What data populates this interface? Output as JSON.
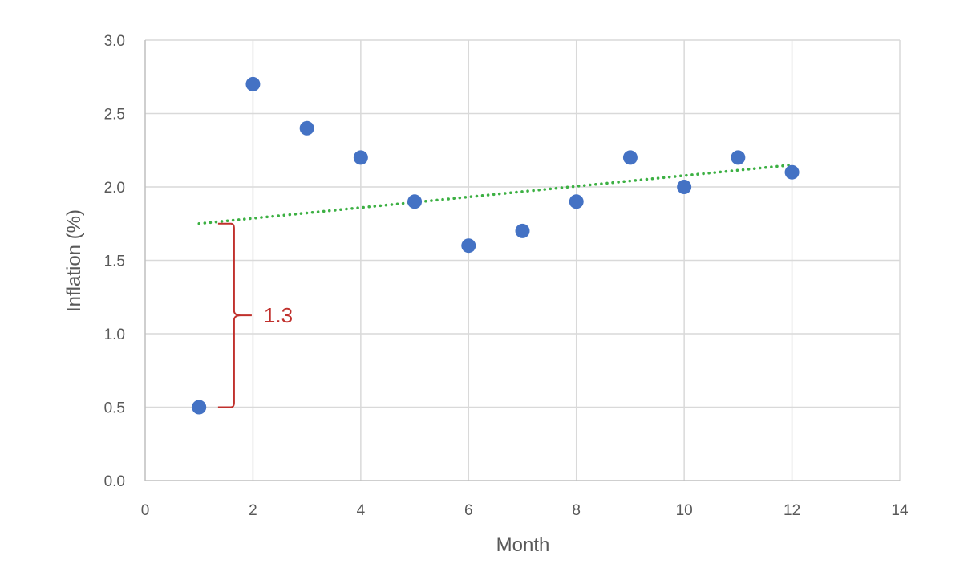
{
  "chart_data": {
    "type": "scatter",
    "title": "",
    "xlabel": "Month",
    "ylabel": "Inflation (%)",
    "xlim": [
      0,
      14
    ],
    "ylim": [
      0.0,
      3.0
    ],
    "x_ticks": [
      "0",
      "2",
      "4",
      "6",
      "8",
      "10",
      "12",
      "14"
    ],
    "y_ticks": [
      "0.0",
      "0.5",
      "1.0",
      "1.5",
      "2.0",
      "2.5",
      "3.0"
    ],
    "grid": true,
    "legend": "none",
    "series": [
      {
        "x": [
          1,
          2,
          3,
          4,
          5,
          6,
          7,
          8,
          9,
          10,
          11,
          12
        ],
        "y": [
          0.5,
          2.7,
          2.4,
          2.2,
          1.9,
          1.6,
          1.7,
          1.9,
          2.2,
          2.0,
          2.2,
          2.1
        ],
        "color": "#4472c4"
      }
    ],
    "trendline": {
      "type": "linear",
      "from": {
        "x": 1,
        "y": 1.75
      },
      "to": {
        "x": 12,
        "y": 2.15
      },
      "color": "#3cb043",
      "style": "dotted"
    },
    "annotation": {
      "text": "1.3",
      "color": "#c0302c",
      "brace_x": 1.65,
      "from_y": 0.5,
      "to_y": 1.75
    }
  }
}
